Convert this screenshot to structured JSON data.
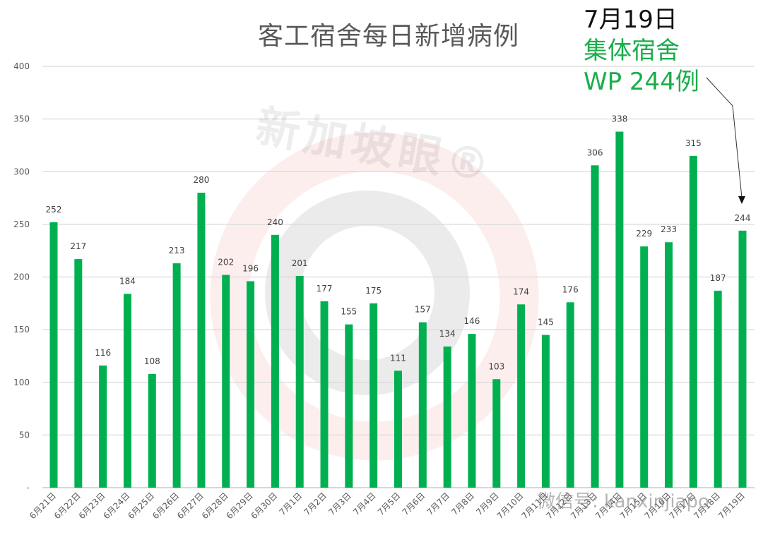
{
  "chart_data": {
    "type": "bar",
    "title": "客工宿舍每日新增病例",
    "xlabel": "",
    "ylabel": "",
    "ylim": [
      0,
      400
    ],
    "yticks": [
      "-",
      "50",
      "100",
      "150",
      "200",
      "250",
      "300",
      "350",
      "400"
    ],
    "grid": true,
    "legend": null,
    "bar_color": "#00b050",
    "categories": [
      "6月21日",
      "6月22日",
      "6月23日",
      "6月24日",
      "6月25日",
      "6月26日",
      "6月27日",
      "6月28日",
      "6月29日",
      "6月30日",
      "7月1日",
      "7月2日",
      "7月3日",
      "7月4日",
      "7月5日",
      "7月6日",
      "7月7日",
      "7月8日",
      "7月9日",
      "7月10日",
      "7月11日",
      "7月12日",
      "7月13日",
      "7月14日",
      "7月15日",
      "7月16日",
      "7月17日",
      "7月18日",
      "7月19日"
    ],
    "values": [
      252,
      217,
      116,
      184,
      108,
      213,
      280,
      202,
      196,
      240,
      201,
      177,
      155,
      175,
      111,
      157,
      134,
      146,
      103,
      174,
      145,
      176,
      306,
      338,
      229,
      233,
      315,
      187,
      244
    ],
    "annotations": [
      {
        "text": "7月19日",
        "color": "#111111"
      },
      {
        "text": "集体宿舍",
        "color": "#1aae4a"
      },
      {
        "text": "WP 244例",
        "color": "#1aae4a",
        "points_to": "7月19日"
      }
    ]
  },
  "watermarks": {
    "brand": "新加坡眼®",
    "wechat": "微信号: kanxinjiapo"
  }
}
